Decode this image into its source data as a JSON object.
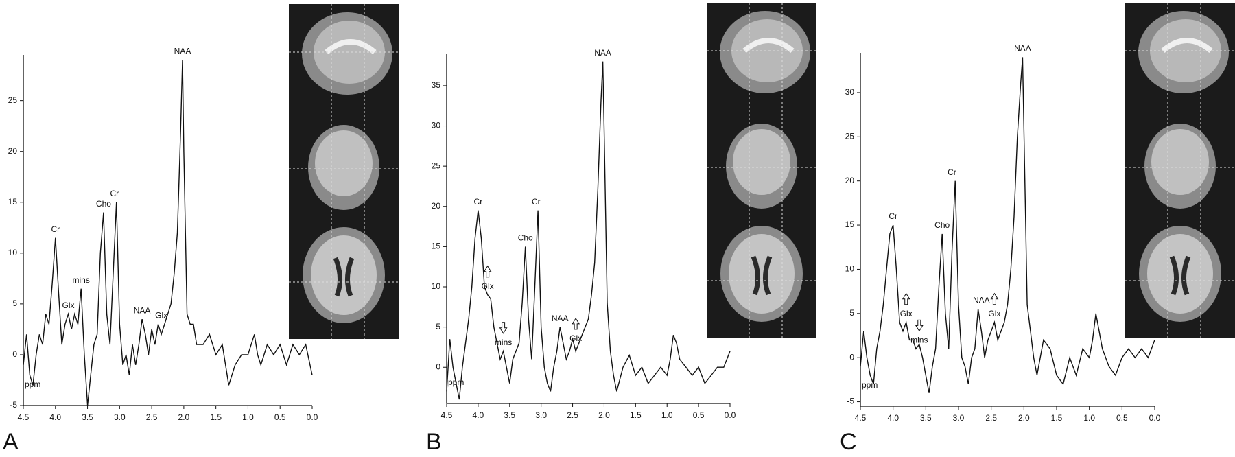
{
  "chart_data": [
    {
      "type": "line",
      "panel_label": "A",
      "x_label": "ppm",
      "color": "#111111",
      "xlim": [
        4.5,
        0.0
      ],
      "xticks": [
        4.5,
        {
          "value": 4,
          "label": "4.0"
        },
        3.5,
        {
          "value": 3,
          "label": "3.0"
        },
        2.5,
        {
          "value": 2,
          "label": "2.0"
        },
        1.5,
        {
          "value": 1,
          "label": "1.0"
        },
        0.5,
        {
          "value": 0,
          "label": "0.0"
        }
      ],
      "ylim": [
        -5,
        29.5
      ],
      "yticks": [
        -5,
        0,
        5,
        10,
        15,
        20,
        25
      ],
      "x": [
        4.5,
        4.45,
        4.4,
        4.35,
        4.3,
        4.25,
        4.2,
        4.15,
        4.1,
        4.05,
        4.0,
        3.95,
        3.9,
        3.85,
        3.8,
        3.75,
        3.7,
        3.65,
        3.6,
        3.55,
        3.5,
        3.45,
        3.4,
        3.35,
        3.3,
        3.25,
        3.2,
        3.15,
        3.1,
        3.05,
        3.0,
        2.95,
        2.9,
        2.85,
        2.8,
        2.75,
        2.7,
        2.65,
        2.6,
        2.55,
        2.5,
        2.45,
        2.4,
        2.35,
        2.3,
        2.25,
        2.2,
        2.15,
        2.1,
        2.05,
        2.02,
        2.0,
        1.95,
        1.9,
        1.85,
        1.8,
        1.7,
        1.6,
        1.5,
        1.4,
        1.3,
        1.2,
        1.1,
        1.0,
        0.95,
        0.9,
        0.85,
        0.8,
        0.7,
        0.6,
        0.5,
        0.4,
        0.3,
        0.2,
        0.1,
        0.0
      ],
      "values": [
        -1,
        2,
        -2,
        -3,
        0,
        2,
        1,
        4,
        3,
        7,
        11.5,
        6,
        1,
        3,
        4,
        2.5,
        4,
        3,
        6.5,
        0,
        -5,
        -2,
        1,
        2,
        10,
        14,
        4,
        1,
        8,
        15,
        3,
        -1,
        0,
        -2,
        1,
        -1,
        1,
        3.5,
        2,
        0,
        2.5,
        1,
        3,
        2,
        3,
        4,
        5,
        8,
        12,
        22,
        29,
        20,
        4,
        3,
        3,
        1,
        1,
        2,
        0,
        1,
        -3,
        -1,
        0,
        0,
        1,
        2,
        0,
        -1,
        1,
        0,
        1,
        -1,
        1,
        0,
        1,
        -2
      ],
      "annotations": [
        {
          "text": "Cr",
          "x": 4.0,
          "y": 11.5
        },
        {
          "text": "Glx",
          "x": 3.8,
          "y": 4
        },
        {
          "text": "mins",
          "x": 3.6,
          "y": 6.5
        },
        {
          "text": "Cho",
          "x": 3.25,
          "y": 14
        },
        {
          "text": "Cr",
          "x": 3.08,
          "y": 15
        },
        {
          "text": "NAA",
          "x": 2.65,
          "y": 3.5
        },
        {
          "text": "Glx",
          "x": 2.35,
          "y": 3
        },
        {
          "text": "NAA",
          "x": 2.02,
          "y": 29
        }
      ]
    },
    {
      "type": "line",
      "panel_label": "B",
      "x_label": "ppm",
      "color": "#111111",
      "xlim": [
        4.5,
        0.0
      ],
      "xticks": [
        4.5,
        {
          "value": 4,
          "label": "4.0"
        },
        3.5,
        {
          "value": 3,
          "label": "3.0"
        },
        2.5,
        {
          "value": 2,
          "label": "2.0"
        },
        1.5,
        {
          "value": 1,
          "label": "1.0"
        },
        0.5,
        {
          "value": 0,
          "label": "0.0"
        }
      ],
      "ylim": [
        -4.5,
        39
      ],
      "yticks": [
        0,
        5,
        10,
        15,
        20,
        25,
        30,
        35
      ],
      "x": [
        4.5,
        4.45,
        4.4,
        4.35,
        4.3,
        4.25,
        4.2,
        4.15,
        4.1,
        4.05,
        4.0,
        3.95,
        3.9,
        3.85,
        3.8,
        3.75,
        3.7,
        3.65,
        3.6,
        3.55,
        3.5,
        3.45,
        3.4,
        3.35,
        3.3,
        3.25,
        3.2,
        3.15,
        3.1,
        3.05,
        3.0,
        2.95,
        2.9,
        2.85,
        2.8,
        2.75,
        2.7,
        2.65,
        2.6,
        2.55,
        2.5,
        2.45,
        2.4,
        2.35,
        2.3,
        2.25,
        2.2,
        2.15,
        2.1,
        2.05,
        2.02,
        2.0,
        1.95,
        1.9,
        1.85,
        1.8,
        1.7,
        1.6,
        1.5,
        1.4,
        1.3,
        1.2,
        1.1,
        1.0,
        0.95,
        0.9,
        0.85,
        0.8,
        0.7,
        0.6,
        0.5,
        0.4,
        0.3,
        0.2,
        0.1,
        0.0
      ],
      "values": [
        -3,
        3.5,
        0,
        -2,
        -4,
        0,
        3,
        6,
        10,
        16,
        19.5,
        16,
        10,
        9,
        8.5,
        5,
        3,
        1,
        2,
        0,
        -2,
        1,
        2,
        3,
        8,
        15,
        6,
        1,
        10,
        19.5,
        5,
        0,
        -2,
        -3,
        0,
        2,
        5,
        3,
        1,
        2,
        3.5,
        2,
        3,
        4,
        5,
        6,
        9,
        13,
        22,
        33,
        38,
        30,
        8,
        2,
        -1,
        -3,
        0,
        1.5,
        -1,
        0,
        -2,
        -1,
        0,
        -1,
        1,
        4,
        3,
        1,
        0,
        -1,
        0,
        -2,
        -1,
        0,
        0,
        2
      ],
      "annotations": [
        {
          "text": "Cr",
          "x": 4.0,
          "y": 19.5
        },
        {
          "text": "Glx",
          "x": 3.85,
          "y": 9,
          "arrow": "up"
        },
        {
          "text": "mins",
          "x": 3.6,
          "y": 2,
          "arrow": "down"
        },
        {
          "text": "Cho",
          "x": 3.25,
          "y": 15
        },
        {
          "text": "Cr",
          "x": 3.08,
          "y": 19.5
        },
        {
          "text": "NAA",
          "x": 2.7,
          "y": 5
        },
        {
          "text": "Glx",
          "x": 2.45,
          "y": 2.5,
          "arrow": "up"
        },
        {
          "text": "NAA",
          "x": 2.02,
          "y": 38
        }
      ]
    },
    {
      "type": "line",
      "panel_label": "C",
      "x_label": "ppm",
      "color": "#111111",
      "xlim": [
        4.5,
        0.0
      ],
      "xticks": [
        4.5,
        {
          "value": 4,
          "label": "4.0"
        },
        3.5,
        {
          "value": 3,
          "label": "3.0"
        },
        2.5,
        {
          "value": 2,
          "label": "2.0"
        },
        1.5,
        {
          "value": 1,
          "label": "1.0"
        },
        0.5,
        {
          "value": 0,
          "label": "0.0"
        }
      ],
      "ylim": [
        -5.5,
        34.5
      ],
      "yticks": [
        -5,
        0,
        5,
        10,
        15,
        20,
        25,
        30
      ],
      "x": [
        4.5,
        4.45,
        4.4,
        4.35,
        4.3,
        4.25,
        4.2,
        4.15,
        4.1,
        4.05,
        4.0,
        3.95,
        3.9,
        3.85,
        3.8,
        3.75,
        3.7,
        3.65,
        3.6,
        3.55,
        3.5,
        3.45,
        3.4,
        3.35,
        3.3,
        3.25,
        3.2,
        3.15,
        3.1,
        3.05,
        3.0,
        2.95,
        2.9,
        2.85,
        2.8,
        2.75,
        2.7,
        2.65,
        2.6,
        2.55,
        2.5,
        2.45,
        2.4,
        2.35,
        2.3,
        2.25,
        2.2,
        2.15,
        2.1,
        2.05,
        2.02,
        2.0,
        1.95,
        1.9,
        1.85,
        1.8,
        1.7,
        1.6,
        1.5,
        1.4,
        1.3,
        1.2,
        1.1,
        1.0,
        0.95,
        0.9,
        0.85,
        0.8,
        0.7,
        0.6,
        0.5,
        0.4,
        0.3,
        0.2,
        0.1,
        0.0
      ],
      "values": [
        -1,
        3,
        0,
        -2,
        -3,
        1,
        3,
        6,
        10,
        14,
        15,
        10,
        4,
        3,
        4,
        2,
        2,
        1,
        1.5,
        0,
        -2,
        -4,
        -1,
        1,
        8,
        14,
        5,
        1,
        12,
        20,
        6,
        0,
        -1,
        -3,
        0,
        1,
        5.5,
        3,
        0,
        2,
        3,
        4,
        2,
        3,
        4,
        6,
        10,
        16,
        25,
        31,
        34,
        26,
        6,
        3,
        0,
        -2,
        2,
        1,
        -2,
        -3,
        0,
        -2,
        1,
        0,
        2,
        5,
        3,
        1,
        -1,
        -2,
        0,
        1,
        0,
        1,
        0,
        2
      ],
      "annotations": [
        {
          "text": "Cr",
          "x": 4.0,
          "y": 15
        },
        {
          "text": "Glx",
          "x": 3.8,
          "y": 4,
          "arrow": "up"
        },
        {
          "text": "mins",
          "x": 3.6,
          "y": 1,
          "arrow": "down"
        },
        {
          "text": "Cho",
          "x": 3.25,
          "y": 14
        },
        {
          "text": "Cr",
          "x": 3.1,
          "y": 20
        },
        {
          "text": "NAA",
          "x": 2.65,
          "y": 5.5
        },
        {
          "text": "Glx",
          "x": 2.45,
          "y": 4,
          "arrow": "up"
        },
        {
          "text": "NAA",
          "x": 2.02,
          "y": 34
        }
      ]
    }
  ]
}
